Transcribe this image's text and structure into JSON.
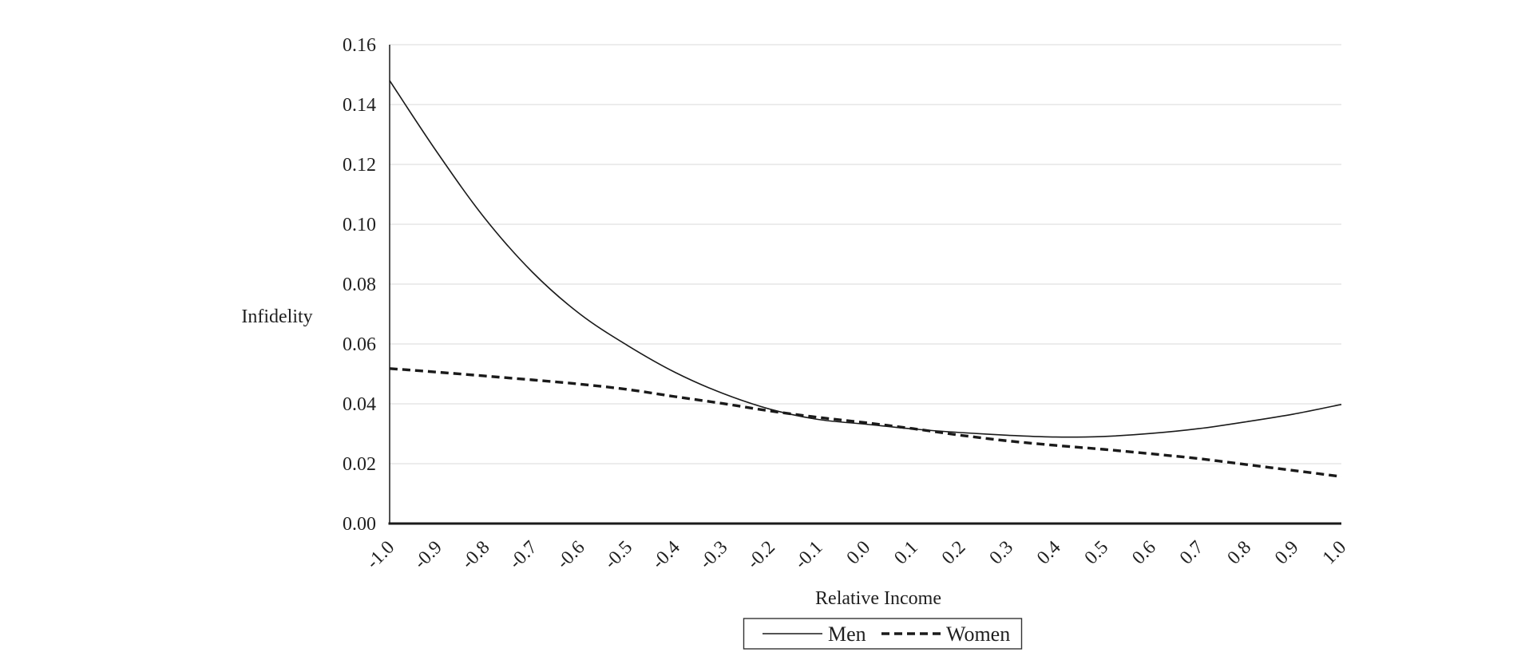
{
  "chart": {
    "y_axis": {
      "title": "Infidelity",
      "tick_labels": [
        "0.00",
        "0.02",
        "0.04",
        "0.06",
        "0.08",
        "0.10",
        "0.12",
        "0.14",
        "0.16"
      ],
      "min": 0.0,
      "max": 0.16,
      "step": 0.02
    },
    "x_axis": {
      "title": "Relative Income",
      "tick_labels": [
        "-1.0",
        "-0.9",
        "-0.8",
        "-0.7",
        "-0.6",
        "-0.5",
        "-0.4",
        "-0.3",
        "-0.2",
        "-0.1",
        "0.0",
        "0.1",
        "0.2",
        "0.3",
        "0.4",
        "0.5",
        "0.6",
        "0.7",
        "0.8",
        "0.9",
        "1.0"
      ]
    },
    "legend": {
      "items": [
        {
          "label": "Men",
          "line_style": "solid"
        },
        {
          "label": "Women",
          "line_style": "dashed"
        }
      ]
    },
    "colors": {
      "line": "#1a1a1a",
      "gridline": "#d9d9d9",
      "axis": "#1a1a1a",
      "text": "#1f1f1f",
      "background": "#ffffff"
    }
  },
  "chart_data": {
    "type": "line",
    "title": "",
    "xlabel": "Relative Income",
    "ylabel": "Infidelity",
    "x": [
      -1.0,
      -0.9,
      -0.8,
      -0.7,
      -0.6,
      -0.5,
      -0.4,
      -0.3,
      -0.2,
      -0.1,
      0.0,
      0.1,
      0.2,
      0.3,
      0.4,
      0.5,
      0.6,
      0.7,
      0.8,
      0.9,
      1.0
    ],
    "series": [
      {
        "name": "Men",
        "style": "solid",
        "values": [
          0.148,
          0.124,
          0.102,
          0.084,
          0.07,
          0.0595,
          0.0505,
          0.0435,
          0.0382,
          0.0348,
          0.0332,
          0.0316,
          0.0304,
          0.0295,
          0.0289,
          0.0291,
          0.0301,
          0.0317,
          0.034,
          0.0366,
          0.0398
        ]
      },
      {
        "name": "Women",
        "style": "dashed",
        "values": [
          0.0518,
          0.0506,
          0.0493,
          0.048,
          0.0466,
          0.0448,
          0.0424,
          0.0401,
          0.0376,
          0.0355,
          0.0337,
          0.0317,
          0.0295,
          0.0276,
          0.0261,
          0.0248,
          0.0233,
          0.0217,
          0.0197,
          0.0177,
          0.0157
        ]
      }
    ],
    "xlim": [
      -1.0,
      1.0
    ],
    "ylim": [
      0.0,
      0.16
    ],
    "ytick_step": 0.02,
    "xtick_step": 0.1,
    "grid": "horizontal-only",
    "legend_position": "bottom-center"
  }
}
